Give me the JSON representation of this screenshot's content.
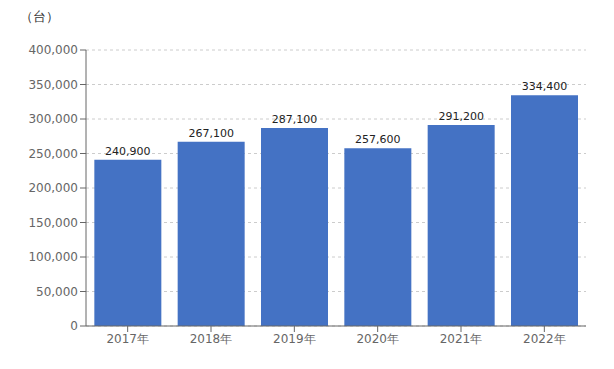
{
  "chart_data": {
    "type": "bar",
    "ylabel": "（台）",
    "categories": [
      "2017年",
      "2018年",
      "2019年",
      "2020年",
      "2021年",
      "2022年"
    ],
    "values": [
      240900,
      267100,
      287100,
      257600,
      291200,
      334400
    ],
    "value_labels": [
      "240,900",
      "267,100",
      "287,100",
      "257,600",
      "291,200",
      "334,400"
    ],
    "data_labels": true,
    "color": "#4472C4",
    "ylim": [
      0,
      400000
    ],
    "yticks": [
      0,
      {
        "value": 50000,
        "label": "50,000"
      },
      {
        "value": 100000,
        "label": "100,000"
      },
      {
        "value": 150000,
        "label": "150,000"
      },
      {
        "value": 200000,
        "label": "200,000"
      },
      {
        "value": 250000,
        "label": "250,000"
      },
      {
        "value": 300000,
        "label": "300,000"
      },
      {
        "value": 350000,
        "label": "350,000"
      },
      {
        "value": 400000,
        "label": "400,000"
      }
    ],
    "grid": true
  }
}
